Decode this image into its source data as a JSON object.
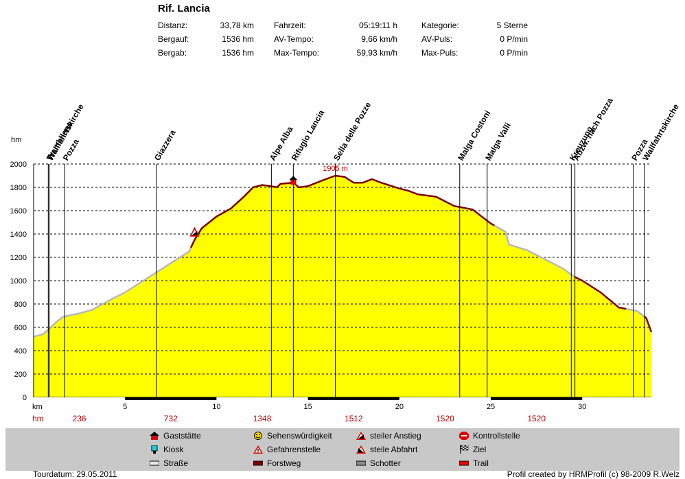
{
  "title": "Rif. Lancia",
  "stats": [
    {
      "label": "Distanz:",
      "value": "33,78 km"
    },
    {
      "label": "Bergauf:",
      "value": "1536 hm"
    },
    {
      "label": "Bergab:",
      "value": "1536 hm"
    },
    {
      "label": "Fahrzeit:",
      "value": "05:19:11 h"
    },
    {
      "label": "AV-Tempo:",
      "value": "9,66 km/h"
    },
    {
      "label": "Max-Tempo:",
      "value": "59,93 km/h"
    },
    {
      "label": "Kategorie:",
      "value": "5 Sterne"
    },
    {
      "label": "AV-Puls:",
      "value": "0 P/min"
    },
    {
      "label": "Max-Puls:",
      "value": "0 P/min"
    }
  ],
  "legend": [
    {
      "label": "Gaststätte",
      "icon": "house-icon"
    },
    {
      "label": "Kiosk",
      "icon": "kiosk-icon"
    },
    {
      "label": "Straße",
      "icon": "road-icon"
    },
    {
      "label": "Sehenswürdigkeit",
      "icon": "smiley-icon"
    },
    {
      "label": "Gefahrenstelle",
      "icon": "warning-icon"
    },
    {
      "label": "Forstweg",
      "icon": "forest-road-icon"
    },
    {
      "label": "steiler Anstieg",
      "icon": "steep-climb-icon"
    },
    {
      "label": "steile Abfahrt",
      "icon": "steep-descent-icon"
    },
    {
      "label": "Schotter",
      "icon": "gravel-icon"
    },
    {
      "label": "Kontrollstelle",
      "icon": "stop-icon"
    },
    {
      "label": "Ziel",
      "icon": "finish-flag-icon"
    },
    {
      "label": "Trail",
      "icon": "trail-icon"
    }
  ],
  "footer": {
    "left": "Tourdatum: 29.05.2011",
    "right": "Profil created by HRMProfil (c) 98-2009 R.Welz"
  },
  "chart_data": {
    "type": "area",
    "ylabel": "hm",
    "xlabel": "km",
    "xlim": [
      0,
      33.78
    ],
    "ylim": [
      0,
      2000
    ],
    "xticks": [
      5,
      10,
      15,
      20,
      25,
      30
    ],
    "yticks": [
      0,
      200,
      400,
      600,
      800,
      1000,
      1200,
      1400,
      1600,
      1800,
      2000
    ],
    "grid": true,
    "fill_color": "#ffff00",
    "colors": {
      "strasse": "#b8b8b8",
      "forstweg": "#7a0000"
    },
    "profile": [
      [
        0,
        520
      ],
      [
        0.5,
        540
      ],
      [
        0.8,
        580
      ],
      [
        1.2,
        640
      ],
      [
        1.6,
        690
      ],
      [
        2.5,
        720
      ],
      [
        3.2,
        750
      ],
      [
        4,
        820
      ],
      [
        5,
        900
      ],
      [
        6,
        1000
      ],
      [
        7,
        1100
      ],
      [
        8,
        1200
      ],
      [
        8.5,
        1250
      ],
      [
        8.8,
        1350
      ],
      [
        9.2,
        1450
      ],
      [
        10,
        1550
      ],
      [
        10.8,
        1620
      ],
      [
        11.5,
        1720
      ],
      [
        12,
        1800
      ],
      [
        12.5,
        1820
      ],
      [
        13,
        1810
      ],
      [
        13.3,
        1800
      ],
      [
        13.5,
        1830
      ],
      [
        14.2,
        1840
      ],
      [
        14.5,
        1800
      ],
      [
        15,
        1810
      ],
      [
        15.8,
        1860
      ],
      [
        16.5,
        1900
      ],
      [
        17,
        1890
      ],
      [
        17.5,
        1840
      ],
      [
        18,
        1840
      ],
      [
        18.5,
        1870
      ],
      [
        19,
        1840
      ],
      [
        20,
        1790
      ],
      [
        20.5,
        1770
      ],
      [
        21,
        1740
      ],
      [
        22,
        1720
      ],
      [
        23,
        1640
      ],
      [
        24,
        1610
      ],
      [
        25,
        1490
      ],
      [
        25.8,
        1420
      ],
      [
        26,
        1310
      ],
      [
        27,
        1260
      ],
      [
        28,
        1180
      ],
      [
        29,
        1100
      ],
      [
        29.5,
        1040
      ],
      [
        30,
        1000
      ],
      [
        31,
        900
      ],
      [
        32,
        770
      ],
      [
        33,
        740
      ],
      [
        33.5,
        680
      ],
      [
        33.78,
        560
      ]
    ],
    "surfaces": [
      {
        "type": "strasse",
        "from": 0,
        "to": 8.6
      },
      {
        "type": "forstweg",
        "from": 8.6,
        "to": 25.2
      },
      {
        "type": "strasse",
        "from": 25.2,
        "to": 29.6
      },
      {
        "type": "forstweg",
        "from": 29.6,
        "to": 32.4
      },
      {
        "type": "strasse",
        "from": 32.4,
        "to": 33.4
      },
      {
        "type": "forstweg",
        "from": 33.4,
        "to": 33.78
      }
    ],
    "waypoints": [
      {
        "name": "Trambileno",
        "km": 0.8
      },
      {
        "name": "Wallfahrtskirche",
        "km": 0.85
      },
      {
        "name": "Pozza",
        "km": 1.7
      },
      {
        "name": "Giazzera",
        "km": 6.7
      },
      {
        "name": "Alpe Alba",
        "km": 13.0
      },
      {
        "name": "Rifugio Lancia",
        "km": 14.2
      },
      {
        "name": "Sella delle Pozze",
        "km": 16.5
      },
      {
        "name": "Malga Costoni",
        "km": 23.3
      },
      {
        "name": "Malga Valli",
        "km": 24.8
      },
      {
        "name": "Kreuzung",
        "km": 29.4
      },
      {
        "name": "Abzw. nach Pozza",
        "km": 29.6
      },
      {
        "name": "Pozza",
        "km": 32.8
      },
      {
        "name": "Wallfahrtskirche",
        "km": 33.4
      }
    ],
    "max_label": {
      "km": 16.5,
      "text": "1905 m"
    },
    "markers": [
      {
        "km": 8.8,
        "value": 1390,
        "type": "steep-climb-icon"
      },
      {
        "km": 14.2,
        "value": 1840,
        "type": "house-icon"
      }
    ],
    "hm_row_label": "hm",
    "hm_row": [
      {
        "km": 2.5,
        "value": "236"
      },
      {
        "km": 7.5,
        "value": "732"
      },
      {
        "km": 12.5,
        "value": "1348"
      },
      {
        "km": 17.5,
        "value": "1512"
      },
      {
        "km": 22.5,
        "value": "1520"
      },
      {
        "km": 27.5,
        "value": "1520"
      }
    ]
  }
}
